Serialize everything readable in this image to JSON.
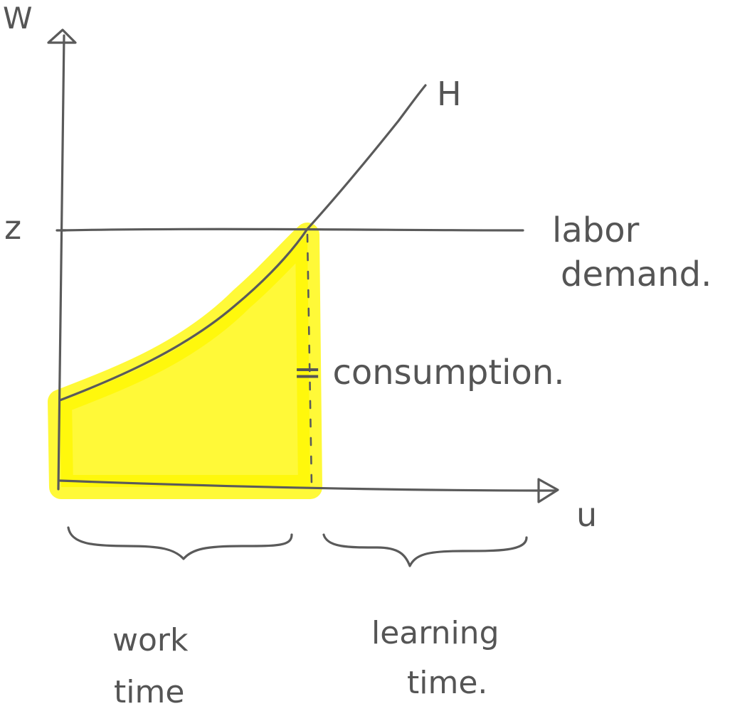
{
  "labels": {
    "y_axis": "W",
    "x_axis": "u",
    "curve": "H",
    "z_level": "z",
    "labor_demand_line1": "labor",
    "labor_demand_line2": "demand.",
    "consumption": "= consumption.",
    "work_time_line1": "work",
    "work_time_line2": "time",
    "learning_time_line1": "learning",
    "learning_time_line2": "time."
  },
  "colors": {
    "ink": "#5a5a5a",
    "highlight": "#fff700",
    "background": "#ffffff"
  }
}
